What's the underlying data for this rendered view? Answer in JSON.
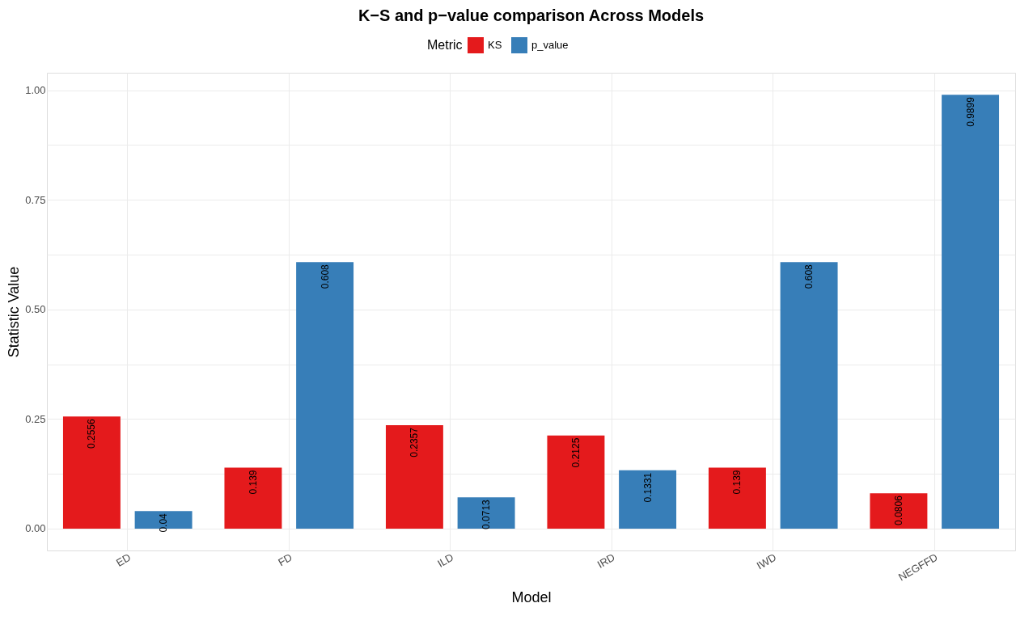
{
  "chart_data": {
    "type": "bar",
    "title": "K−S and p−value comparison Across Models",
    "xlabel": "Model",
    "ylabel": "Statistic Value",
    "legend_title": "Metric",
    "categories": [
      "ED",
      "FD",
      "ILD",
      "IRD",
      "IWD",
      "NEGFFD"
    ],
    "series": [
      {
        "name": "KS",
        "color": "#e41a1c",
        "values": [
          0.2556,
          0.139,
          0.2357,
          0.2125,
          0.139,
          0.0806
        ]
      },
      {
        "name": "p_value",
        "color": "#377eb8",
        "values": [
          0.04,
          0.608,
          0.0713,
          0.1331,
          0.608,
          0.9899
        ]
      }
    ],
    "ylim": [
      -0.05,
      1.04
    ],
    "yticks": [
      {
        "value": 0,
        "label": "0.00"
      },
      {
        "value": 0.125,
        "label": null
      },
      0.25,
      {
        "value": 0.375,
        "label": null
      },
      {
        "value": 0.5,
        "label": "0.50"
      },
      {
        "value": 0.625,
        "label": null
      },
      0.75,
      {
        "value": 0.875,
        "label": null
      },
      {
        "value": 1,
        "label": "1.00"
      }
    ],
    "data_labels": true,
    "grid": true,
    "legend": "top"
  }
}
